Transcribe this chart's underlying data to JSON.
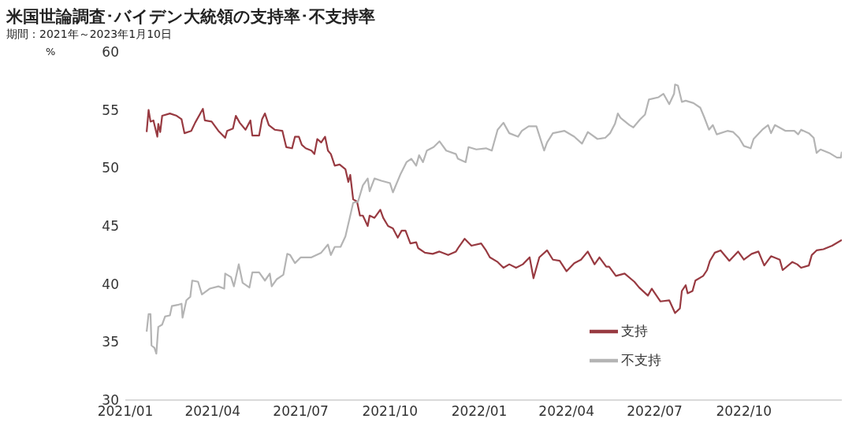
{
  "chart_data": {
    "type": "line",
    "title": "米国世論調査･バイデン大統領の支持率･不支持率",
    "subtitle": "期間：2021年～2023年1月10日",
    "ylabel": "%",
    "xlim": [
      "2021-01-01",
      "2023-01-10"
    ],
    "xticks": [
      {
        "value": "2021-01-01",
        "label": "2021/01"
      },
      {
        "value": "2021-04-01",
        "label": "2021/04"
      },
      {
        "value": "2021-07-01",
        "label": "2021/07"
      },
      {
        "value": "2021-10-01",
        "label": "2021/10"
      },
      {
        "value": "2022-01-01",
        "label": "2022/01"
      },
      {
        "value": "2022-04-01",
        "label": "2022/04"
      },
      {
        "value": "2022-07-01",
        "label": "2022/07"
      },
      {
        "value": "2022-10-01",
        "label": "2022/10"
      }
    ],
    "ylim": [
      30,
      60
    ],
    "yticks": [
      30,
      35,
      40,
      45,
      50,
      55,
      60
    ],
    "grid": false,
    "legend": "bottom right",
    "line_style": "solid",
    "marker": "none",
    "series": [
      {
        "name": "支持",
        "color": "#983a41",
        "x": [
          "2021-01-23",
          "2021-01-25",
          "2021-01-27",
          "2021-01-30",
          "2021-02-03",
          "2021-02-04",
          "2021-02-06",
          "2021-02-08",
          "2021-02-16",
          "2021-02-23",
          "2021-02-28",
          "2021-03-03",
          "2021-03-10",
          "2021-03-14",
          "2021-03-22",
          "2021-03-24",
          "2021-03-31",
          "2021-04-07",
          "2021-04-14",
          "2021-04-16",
          "2021-04-22",
          "2021-04-25",
          "2021-04-29",
          "2021-05-05",
          "2021-05-10",
          "2021-05-12",
          "2021-05-19",
          "2021-05-22",
          "2021-05-25",
          "2021-05-29",
          "2021-06-04",
          "2021-06-12",
          "2021-06-16",
          "2021-06-22",
          "2021-06-25",
          "2021-06-29",
          "2021-07-02",
          "2021-07-06",
          "2021-07-12",
          "2021-07-15",
          "2021-07-18",
          "2021-07-22",
          "2021-07-26",
          "2021-07-29",
          "2021-08-01",
          "2021-08-05",
          "2021-08-10",
          "2021-08-16",
          "2021-08-19",
          "2021-08-21",
          "2021-08-24",
          "2021-08-28",
          "2021-08-31",
          "2021-09-03",
          "2021-09-08",
          "2021-09-10",
          "2021-09-15",
          "2021-09-21",
          "2021-09-24",
          "2021-09-29",
          "2021-10-04",
          "2021-10-09",
          "2021-10-13",
          "2021-10-17",
          "2021-10-22",
          "2021-10-28",
          "2021-10-30",
          "2021-11-06",
          "2021-11-14",
          "2021-11-21",
          "2021-11-30",
          "2021-12-08",
          "2021-12-11",
          "2021-12-17",
          "2021-12-24",
          "2022-01-03",
          "2022-01-08",
          "2022-01-12",
          "2022-01-20",
          "2022-01-26",
          "2022-02-01",
          "2022-02-08",
          "2022-02-15",
          "2022-02-22",
          "2022-02-26",
          "2022-03-04",
          "2022-03-12",
          "2022-03-18",
          "2022-03-25",
          "2022-04-01",
          "2022-04-09",
          "2022-04-16",
          "2022-04-23",
          "2022-04-30",
          "2022-05-05",
          "2022-05-12",
          "2022-05-15",
          "2022-05-22",
          "2022-05-31",
          "2022-06-10",
          "2022-06-15",
          "2022-06-24",
          "2022-06-28",
          "2022-07-07",
          "2022-07-16",
          "2022-07-22",
          "2022-07-27",
          "2022-07-29",
          "2022-08-02",
          "2022-08-04",
          "2022-08-09",
          "2022-08-12",
          "2022-08-20",
          "2022-08-24",
          "2022-08-27",
          "2022-09-01",
          "2022-09-07",
          "2022-09-16",
          "2022-09-25",
          "2022-10-01",
          "2022-10-09",
          "2022-10-16",
          "2022-10-22",
          "2022-10-29",
          "2022-11-07",
          "2022-11-10",
          "2022-11-20",
          "2022-11-25",
          "2022-11-29",
          "2022-12-07",
          "2022-12-10",
          "2022-12-15",
          "2022-12-22",
          "2022-12-31",
          "2023-01-10"
        ],
        "values": [
          53.1,
          55.0,
          54.0,
          54.1,
          52.7,
          53.8,
          53.1,
          54.5,
          54.7,
          54.5,
          54.2,
          53.0,
          53.2,
          53.9,
          55.1,
          54.1,
          54.0,
          53.2,
          52.6,
          53.2,
          53.4,
          54.5,
          53.9,
          53.3,
          54.1,
          52.8,
          52.8,
          54.2,
          54.7,
          53.7,
          53.3,
          53.2,
          51.8,
          51.7,
          52.7,
          52.7,
          52.0,
          51.7,
          51.5,
          51.2,
          52.5,
          52.2,
          52.7,
          51.5,
          51.2,
          50.2,
          50.3,
          49.9,
          48.8,
          49.4,
          47.3,
          47.1,
          45.9,
          45.9,
          45.0,
          45.9,
          45.7,
          46.4,
          45.7,
          45.0,
          44.8,
          44.0,
          44.6,
          44.6,
          43.5,
          43.6,
          43.1,
          42.7,
          42.6,
          42.8,
          42.5,
          42.8,
          43.2,
          43.9,
          43.3,
          43.5,
          42.9,
          42.3,
          41.9,
          41.4,
          41.7,
          41.4,
          41.7,
          42.3,
          40.5,
          42.3,
          42.9,
          42.1,
          42.0,
          41.1,
          41.8,
          42.1,
          42.8,
          41.7,
          42.3,
          41.5,
          41.5,
          40.7,
          40.9,
          40.2,
          39.7,
          39.0,
          39.6,
          38.5,
          38.6,
          37.5,
          37.9,
          39.4,
          39.9,
          39.2,
          39.4,
          40.3,
          40.7,
          41.2,
          42.0,
          42.7,
          42.9,
          42.0,
          42.8,
          42.1,
          42.6,
          42.8,
          41.6,
          42.4,
          42.1,
          41.2,
          41.9,
          41.7,
          41.4,
          41.6,
          42.5,
          42.9,
          43.0,
          43.3,
          43.8
        ]
      },
      {
        "name": "不支持",
        "color": "#b4b4b4",
        "x": [
          "2021-01-23",
          "2021-01-25",
          "2021-01-27",
          "2021-01-28",
          "2021-01-31",
          "2021-02-02",
          "2021-02-04",
          "2021-02-08",
          "2021-02-11",
          "2021-02-16",
          "2021-02-18",
          "2021-02-24",
          "2021-02-28",
          "2021-03-01",
          "2021-03-05",
          "2021-03-09",
          "2021-03-11",
          "2021-03-17",
          "2021-03-21",
          "2021-03-29",
          "2021-04-07",
          "2021-04-13",
          "2021-04-14",
          "2021-04-20",
          "2021-04-23",
          "2021-04-28",
          "2021-05-02",
          "2021-05-09",
          "2021-05-12",
          "2021-05-19",
          "2021-05-25",
          "2021-05-30",
          "2021-06-01",
          "2021-06-06",
          "2021-06-13",
          "2021-06-17",
          "2021-06-20",
          "2021-06-25",
          "2021-07-01",
          "2021-07-12",
          "2021-07-22",
          "2021-07-29",
          "2021-08-01",
          "2021-08-05",
          "2021-08-11",
          "2021-08-16",
          "2021-08-21",
          "2021-08-24",
          "2021-08-29",
          "2021-09-03",
          "2021-09-08",
          "2021-09-10",
          "2021-09-15",
          "2021-09-22",
          "2021-10-01",
          "2021-10-04",
          "2021-10-12",
          "2021-10-18",
          "2021-10-23",
          "2021-10-28",
          "2021-10-31",
          "2021-11-04",
          "2021-11-08",
          "2021-11-15",
          "2021-11-21",
          "2021-11-28",
          "2021-12-08",
          "2021-12-10",
          "2021-12-18",
          "2021-12-21",
          "2021-12-29",
          "2022-01-08",
          "2022-01-14",
          "2022-01-20",
          "2022-01-26",
          "2022-02-01",
          "2022-02-10",
          "2022-02-14",
          "2022-02-21",
          "2022-03-01",
          "2022-03-09",
          "2022-03-12",
          "2022-03-18",
          "2022-03-30",
          "2022-04-09",
          "2022-04-17",
          "2022-04-23",
          "2022-05-03",
          "2022-05-11",
          "2022-05-16",
          "2022-05-21",
          "2022-05-24",
          "2022-05-27",
          "2022-06-05",
          "2022-06-09",
          "2022-06-16",
          "2022-06-21",
          "2022-06-25",
          "2022-07-05",
          "2022-07-10",
          "2022-07-16",
          "2022-07-21",
          "2022-07-22",
          "2022-07-25",
          "2022-07-29",
          "2022-08-02",
          "2022-08-10",
          "2022-08-17",
          "2022-08-21",
          "2022-08-26",
          "2022-08-30",
          "2022-09-03",
          "2022-09-14",
          "2022-09-20",
          "2022-09-26",
          "2022-10-01",
          "2022-10-08",
          "2022-10-11",
          "2022-10-20",
          "2022-10-26",
          "2022-10-29",
          "2022-11-02",
          "2022-11-13",
          "2022-11-22",
          "2022-11-26",
          "2022-11-29",
          "2022-12-07",
          "2022-12-12",
          "2022-12-15",
          "2022-12-19",
          "2022-12-28",
          "2023-01-05",
          "2023-01-09",
          "2023-01-10"
        ],
        "values": [
          35.9,
          37.4,
          37.4,
          34.7,
          34.5,
          34.0,
          36.3,
          36.5,
          37.2,
          37.3,
          38.1,
          38.2,
          38.3,
          37.1,
          38.6,
          38.9,
          40.3,
          40.2,
          39.1,
          39.6,
          39.8,
          39.6,
          40.9,
          40.6,
          39.8,
          41.7,
          40.1,
          39.7,
          41.0,
          41.0,
          40.3,
          40.9,
          39.8,
          40.4,
          40.8,
          42.6,
          42.5,
          41.8,
          42.3,
          42.3,
          42.7,
          43.4,
          42.5,
          43.2,
          43.2,
          44.1,
          45.9,
          47.0,
          47.1,
          48.5,
          49.1,
          48.0,
          49.1,
          48.9,
          48.7,
          47.9,
          49.5,
          50.5,
          50.8,
          50.2,
          51.1,
          50.5,
          51.5,
          51.8,
          52.3,
          51.5,
          51.2,
          50.8,
          50.5,
          51.8,
          51.6,
          51.7,
          51.5,
          53.3,
          53.9,
          53.0,
          52.7,
          53.2,
          53.6,
          53.6,
          51.5,
          52.2,
          53.0,
          53.2,
          52.7,
          52.1,
          53.1,
          52.5,
          52.6,
          53.0,
          53.8,
          54.7,
          54.3,
          53.7,
          53.5,
          54.2,
          54.6,
          55.9,
          56.1,
          56.4,
          55.5,
          56.4,
          57.2,
          57.1,
          55.7,
          55.8,
          55.6,
          55.2,
          54.4,
          53.3,
          53.7,
          52.9,
          53.2,
          53.1,
          52.6,
          51.9,
          51.7,
          52.5,
          53.3,
          53.7,
          53.0,
          53.7,
          53.2,
          53.2,
          52.9,
          53.3,
          53.0,
          52.6,
          51.3,
          51.6,
          51.3,
          50.9,
          50.9,
          51.4
        ]
      }
    ]
  }
}
